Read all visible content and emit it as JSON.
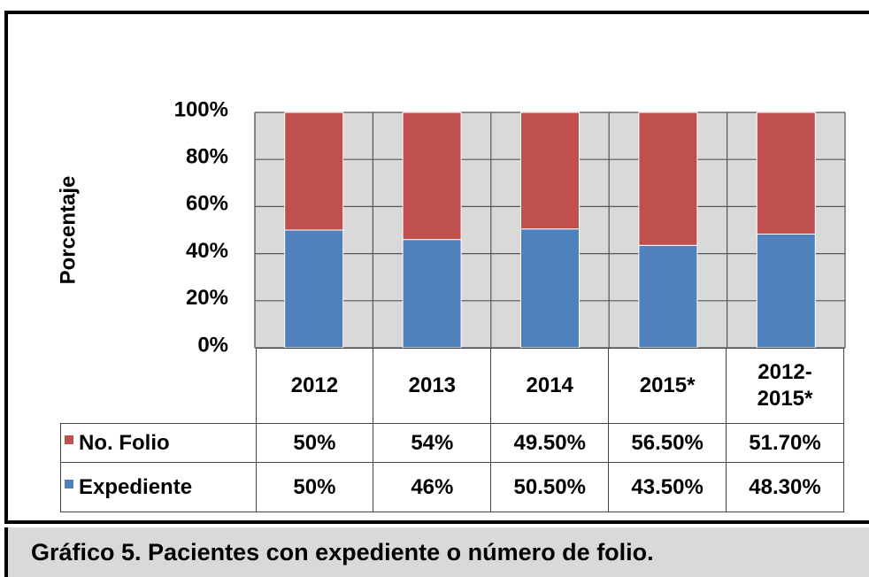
{
  "chart_data": {
    "type": "stacked_bar",
    "y_label": "Porcentaje",
    "caption": "Gráfico 5. Pacientes con expediente o número de folio.",
    "categories": [
      "2012",
      "2013",
      "2014",
      "2015*",
      "2012-2015*"
    ],
    "series": [
      {
        "name": "Expediente",
        "color": "#4f81bd",
        "values": [
          50,
          46,
          50.5,
          43.5,
          48.3
        ],
        "value_labels": [
          "50%",
          "46%",
          "50.50%",
          "43.50%",
          "48.30%"
        ]
      },
      {
        "name": "No. Folio",
        "color": "#c0504d",
        "values": [
          50,
          54,
          49.5,
          56.5,
          51.7
        ],
        "value_labels": [
          "50%",
          "54%",
          "49.50%",
          "56.50%",
          "51.70%"
        ]
      }
    ],
    "ylim": [
      0,
      100
    ],
    "yticks": [
      {
        "value": 0,
        "label": "0%"
      },
      {
        "value": 20,
        "label": "20%"
      },
      {
        "value": 40,
        "label": "40%"
      },
      {
        "value": 60,
        "label": "60%"
      },
      {
        "value": 80,
        "label": "80%"
      },
      {
        "value": 100,
        "label": "100%"
      }
    ],
    "grid": true
  }
}
